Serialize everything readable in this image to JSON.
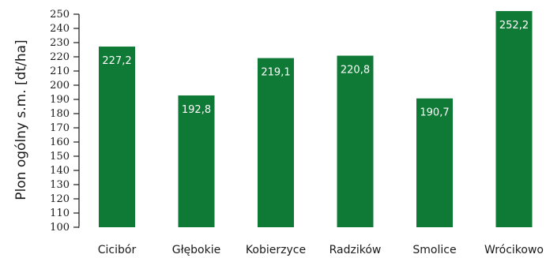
{
  "chart_data": {
    "type": "bar",
    "title": "",
    "xlabel": "",
    "ylabel": "Plon ogólny s.m. [dt/ha]",
    "categories": [
      "Cicibór",
      "Głębokie",
      "Kobierzyce",
      "Radzików",
      "Smolice",
      "Wrócikowo"
    ],
    "values": [
      227.2,
      192.8,
      219.1,
      220.8,
      190.7,
      252.2
    ],
    "value_labels": [
      "227,2",
      "192,8",
      "219,1",
      "220,8",
      "190,7",
      "252,2"
    ],
    "ylim": [
      100,
      250
    ],
    "yticks": [
      100,
      110,
      120,
      130,
      140,
      150,
      160,
      170,
      180,
      190,
      200,
      210,
      220,
      230,
      240,
      250
    ],
    "grid": false,
    "legend": "none",
    "bar_color": "#0f7a35"
  }
}
